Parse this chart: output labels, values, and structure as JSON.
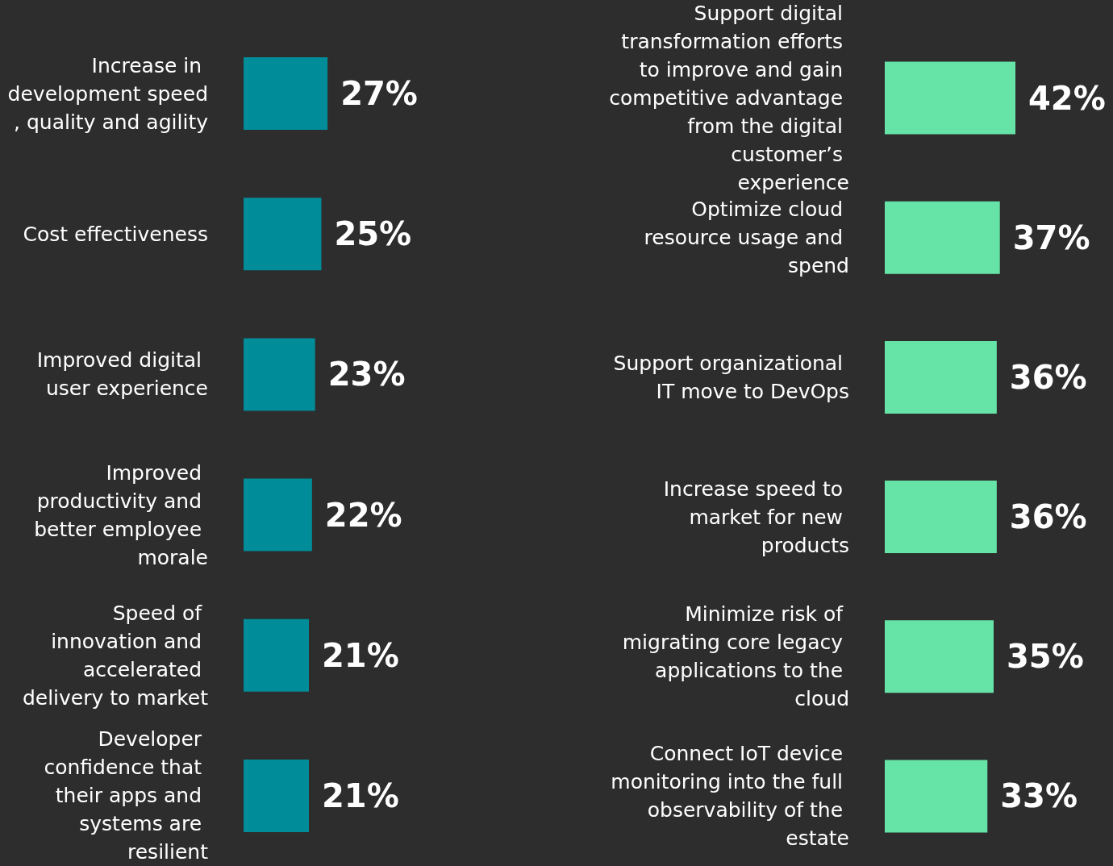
{
  "chart_data": [
    {
      "type": "bar",
      "orientation": "horizontal",
      "categories": [
        "Increase in development speed, quality and agility",
        "Cost effectiveness",
        "Improved digital user experience",
        "Improved productivity and better employee morale",
        "Speed of innovation and accelerated delivery to market",
        "Developer confidence that their apps and systems are resilient"
      ],
      "values": [
        27,
        25,
        23,
        22,
        21,
        21
      ],
      "value_labels": [
        "27%",
        "25%",
        "23%",
        "22%",
        "21%",
        "21%"
      ],
      "color": "#008c99"
    },
    {
      "type": "bar",
      "orientation": "horizontal",
      "categories": [
        "Support digital transformation efforts to improve and gain competitive advantage from the digital customer’s experience",
        "Optimize cloud resource usage and spend",
        "Support organizational IT move to DevOps",
        "Increase speed to market for new products",
        "Minimize risk of migrating core legacy applications to the cloud",
        "Connect IoT device monitoring into the full observability of the estate"
      ],
      "values": [
        42,
        37,
        36,
        36,
        35,
        33
      ],
      "value_labels": [
        "42%",
        "37%",
        "36%",
        "36%",
        "35%",
        "33%"
      ],
      "color": "#66e3a6"
    }
  ]
}
